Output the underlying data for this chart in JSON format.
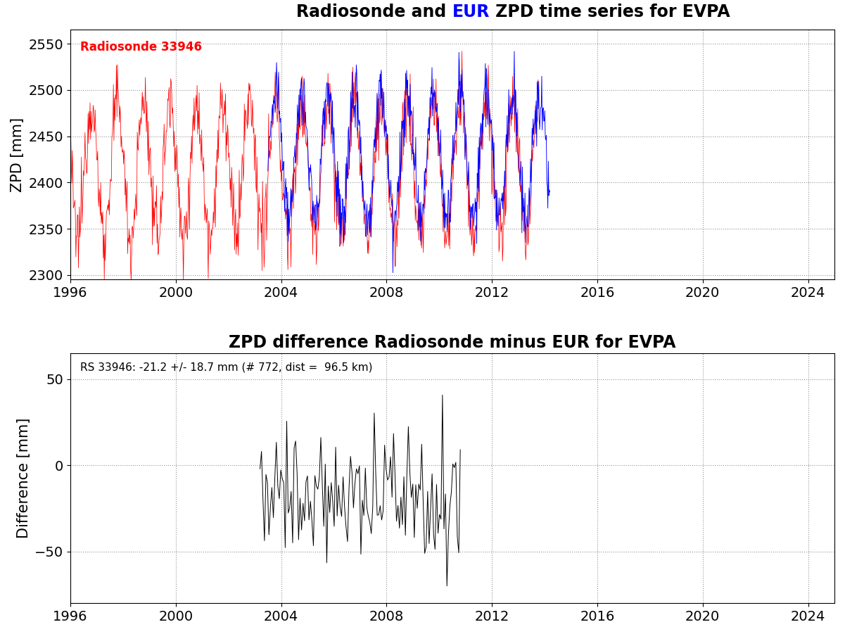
{
  "title1_black1": "Radiosonde and ",
  "title1_blue": "EUR",
  "title1_black2": " ZPD time series for EVPA",
  "title2": "ZPD difference Radiosonde minus EUR for EVPA",
  "ylabel1": "ZPD [mm]",
  "ylabel2": "Difference [mm]",
  "xlim": [
    1996,
    2025
  ],
  "xticks": [
    1996,
    2000,
    2004,
    2008,
    2012,
    2016,
    2020,
    2024
  ],
  "ylim1": [
    2295,
    2565
  ],
  "yticks1": [
    2300,
    2350,
    2400,
    2450,
    2500,
    2550
  ],
  "ylim2": [
    -80,
    65
  ],
  "yticks2": [
    -50,
    0,
    50
  ],
  "label_rs": "Radiosonde 33946",
  "annotation": "RS 33946: -21.2 +/- 18.7 mm (# 772, dist =  96.5 km)",
  "rs_color": "#ff0000",
  "eur_color": "#0000ff",
  "diff_color": "#000000",
  "background": "#ffffff",
  "title_fontsize": 17,
  "axis_fontsize": 15,
  "tick_fontsize": 14,
  "annot_fontsize": 11,
  "label_rs_fontsize": 12,
  "rs_start_year": 1996.0,
  "rs_end_year": 2013.75,
  "eur_start_year": 2003.5,
  "eur_end_year": 2014.2,
  "diff_start_year": 2003.2,
  "diff_end_year": 2010.8
}
